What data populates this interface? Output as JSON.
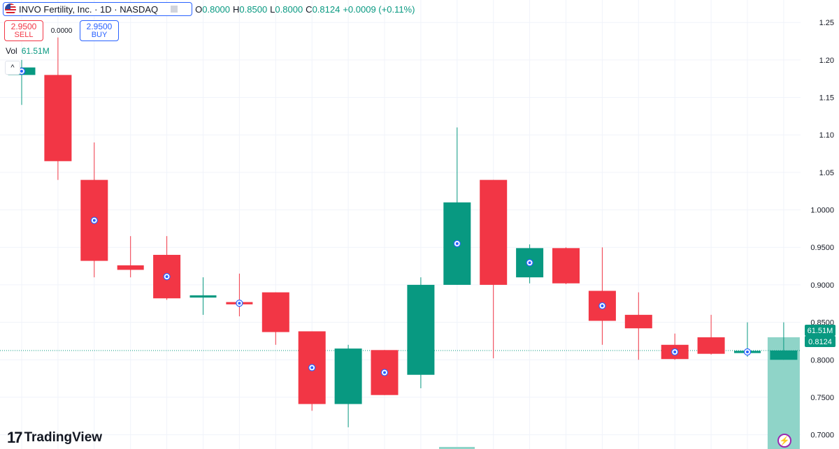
{
  "header": {
    "symbol_title": "INVO Fertility, Inc. · 1D · NASDAQ",
    "ohlc": {
      "o_label": "O",
      "o_value": "0.8000",
      "h_label": "H",
      "h_value": "0.8500",
      "l_label": "L",
      "l_value": "0.8000",
      "c_label": "C",
      "c_value": "0.8124",
      "change": "+0.0009 (+0.11%)"
    }
  },
  "trade": {
    "sell_price": "2.9500",
    "sell_label": "SELL",
    "spread": "0.0000",
    "buy_price": "2.9500",
    "buy_label": "BUY"
  },
  "volume": {
    "label": "Vol",
    "value": "61.51M"
  },
  "collapse_glyph": "^",
  "brand": {
    "logo": "17",
    "name": "TradingView"
  },
  "badges": {
    "volume": "61.51M",
    "price": "0.8124"
  },
  "icons": {
    "flash": "⚡"
  },
  "colors": {
    "up": "#089981",
    "down": "#f23645",
    "volume_up": "#8fd4c8",
    "grid": "#f0f3fa"
  },
  "chart_data": {
    "type": "candlestick",
    "y_ticks": [
      "1.25",
      "1.20",
      "1.15",
      "1.10",
      "1.05",
      "1.0000",
      "0.9500",
      "0.9000",
      "0.8500",
      "0.8000",
      "0.7500",
      "0.7000"
    ],
    "ylim": [
      0.681,
      1.28
    ],
    "last_price": 0.8124,
    "candles": [
      {
        "o": 1.18,
        "h": 1.2,
        "l": 1.14,
        "c": 1.19,
        "marker": true
      },
      {
        "o": 1.18,
        "h": 1.23,
        "l": 1.04,
        "c": 1.065,
        "marker": false
      },
      {
        "o": 1.04,
        "h": 1.09,
        "l": 0.91,
        "c": 0.932,
        "marker": true
      },
      {
        "o": 0.926,
        "h": 0.965,
        "l": 0.91,
        "c": 0.92,
        "marker": false
      },
      {
        "o": 0.94,
        "h": 0.965,
        "l": 0.88,
        "c": 0.882,
        "marker": true
      },
      {
        "o": 0.883,
        "h": 0.91,
        "l": 0.86,
        "c": 0.886,
        "marker": false
      },
      {
        "o": 0.877,
        "h": 0.915,
        "l": 0.858,
        "c": 0.874,
        "marker": true
      },
      {
        "o": 0.89,
        "h": 0.89,
        "l": 0.82,
        "c": 0.837,
        "marker": false
      },
      {
        "o": 0.838,
        "h": 0.838,
        "l": 0.732,
        "c": 0.741,
        "marker": true
      },
      {
        "o": 0.741,
        "h": 0.82,
        "l": 0.71,
        "c": 0.815,
        "marker": false
      },
      {
        "o": 0.813,
        "h": 0.813,
        "l": 0.753,
        "c": 0.753,
        "marker": true
      },
      {
        "o": 0.78,
        "h": 0.91,
        "l": 0.762,
        "c": 0.9,
        "marker": false
      },
      {
        "o": 0.9,
        "h": 1.11,
        "l": 0.9,
        "c": 1.01,
        "marker": true
      },
      {
        "o": 1.04,
        "h": 1.04,
        "l": 0.802,
        "c": 0.9,
        "marker": false
      },
      {
        "o": 0.91,
        "h": 0.954,
        "l": 0.902,
        "c": 0.949,
        "marker": true
      },
      {
        "o": 0.949,
        "h": 0.95,
        "l": 0.901,
        "c": 0.902,
        "marker": false
      },
      {
        "o": 0.892,
        "h": 0.95,
        "l": 0.82,
        "c": 0.852,
        "marker": true
      },
      {
        "o": 0.86,
        "h": 0.89,
        "l": 0.8,
        "c": 0.842,
        "marker": false
      },
      {
        "o": 0.82,
        "h": 0.835,
        "l": 0.8,
        "c": 0.801,
        "marker": true
      },
      {
        "o": 0.83,
        "h": 0.86,
        "l": 0.807,
        "c": 0.808,
        "marker": false
      },
      {
        "o": 0.809,
        "h": 0.85,
        "l": 0.804,
        "c": 0.812,
        "marker": true
      },
      {
        "o": 0.8,
        "h": 0.85,
        "l": 0.8,
        "c": 0.8124,
        "marker": false
      }
    ],
    "volume_last": 61.51,
    "volume_unit": "M"
  }
}
